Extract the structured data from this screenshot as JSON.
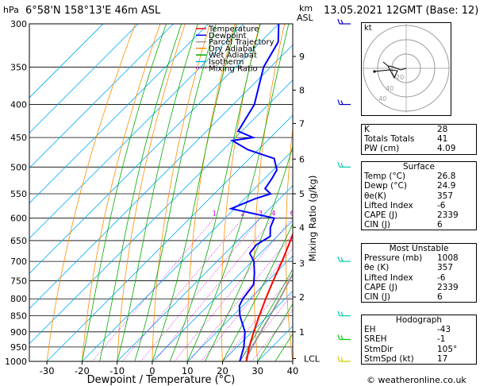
{
  "header": {
    "location": "6°58'N 158°13'E 46m ASL",
    "datetime": "13.05.2021 12GMT (Base: 12)",
    "hpa_label": "hPa",
    "km_label": "km",
    "asl_label": "ASL"
  },
  "footer": {
    "credit": "© weatheronline.co.uk"
  },
  "chart_data": {
    "type": "line",
    "title": "6°58'N 158°13'E 46m ASL",
    "xlabel": "Dewpoint / Temperature (°C)",
    "ylabel": "hPa",
    "right_ylabel": "Mixing Ratio (g/kg)",
    "xlim": [
      -35,
      40
    ],
    "ylim": [
      1000,
      300
    ],
    "x_ticks": [
      "-30",
      "-20",
      "-10",
      "0",
      "10",
      "20",
      "30",
      "40"
    ],
    "pressure_ticks": [
      "300",
      "350",
      "400",
      "450",
      "500",
      "550",
      "600",
      "650",
      "700",
      "750",
      "800",
      "850",
      "900",
      "950",
      "1000"
    ],
    "km_ticks": [
      {
        "label": "9",
        "p": 337
      },
      {
        "label": "8",
        "p": 380
      },
      {
        "label": "7",
        "p": 428
      },
      {
        "label": "6",
        "p": 486
      },
      {
        "label": "5",
        "p": 550
      },
      {
        "label": "4",
        "p": 620
      },
      {
        "label": "3",
        "p": 705
      },
      {
        "label": "2",
        "p": 795
      },
      {
        "label": "1",
        "p": 900
      },
      {
        "label": "LCL",
        "p": 990
      }
    ],
    "mixing_ratio_labels": [
      "1",
      "2",
      "3",
      "4",
      "6",
      "8",
      "10",
      "15",
      "20",
      "25"
    ],
    "legend": [
      "Temperature",
      "Dewpoint",
      "Parcel Trajectory",
      "Dry Adiabat",
      "Wet Adiabat",
      "Isotherm",
      "Mixing Ratio"
    ],
    "legend_colors": [
      "#ff0000",
      "#0000ff",
      "#999999",
      "#ff8c00",
      "#00aa00",
      "#00aaff",
      "#cc00cc"
    ],
    "temperature": [
      {
        "p": 1000,
        "t": 26.8
      },
      {
        "p": 950,
        "t": 23.5
      },
      {
        "p": 900,
        "t": 20.5
      },
      {
        "p": 850,
        "t": 17.5
      },
      {
        "p": 800,
        "t": 14.5
      },
      {
        "p": 750,
        "t": 11.5
      },
      {
        "p": 700,
        "t": 8.5
      },
      {
        "p": 650,
        "t": 5.0
      },
      {
        "p": 600,
        "t": 1.0
      },
      {
        "p": 550,
        "t": -3.5
      },
      {
        "p": 500,
        "t": -8.0
      },
      {
        "p": 470,
        "t": -10.0
      },
      {
        "p": 450,
        "t": -13.5
      },
      {
        "p": 400,
        "t": -19.5
      },
      {
        "p": 350,
        "t": -28.0
      },
      {
        "p": 300,
        "t": -37.0
      }
    ],
    "dewpoint": [
      {
        "p": 1000,
        "t": 24.9
      },
      {
        "p": 950,
        "t": 22.0
      },
      {
        "p": 900,
        "t": 18.0
      },
      {
        "p": 850,
        "t": 12.0
      },
      {
        "p": 820,
        "t": 9.0
      },
      {
        "p": 800,
        "t": 8.0
      },
      {
        "p": 760,
        "t": 7.0
      },
      {
        "p": 730,
        "t": 4.0
      },
      {
        "p": 700,
        "t": 0.5
      },
      {
        "p": 680,
        "t": -3.0
      },
      {
        "p": 660,
        "t": -3.5
      },
      {
        "p": 640,
        "t": -2.0
      },
      {
        "p": 620,
        "t": -4.5
      },
      {
        "p": 600,
        "t": -6.0
      },
      {
        "p": 580,
        "t": -21.0
      },
      {
        "p": 560,
        "t": -17.0
      },
      {
        "p": 550,
        "t": -14.0
      },
      {
        "p": 540,
        "t": -17.0
      },
      {
        "p": 520,
        "t": -18.0
      },
      {
        "p": 505,
        "t": -19.0
      },
      {
        "p": 485,
        "t": -23.0
      },
      {
        "p": 470,
        "t": -33.0
      },
      {
        "p": 455,
        "t": -40.0
      },
      {
        "p": 450,
        "t": -35.0
      },
      {
        "p": 440,
        "t": -41.0
      },
      {
        "p": 400,
        "t": -44.0
      },
      {
        "p": 350,
        "t": -52.0
      },
      {
        "p": 320,
        "t": -55.0
      },
      {
        "p": 300,
        "t": -60.0
      }
    ],
    "parcel": [
      {
        "p": 990,
        "t": 25.8
      },
      {
        "p": 900,
        "t": 22.5
      },
      {
        "p": 800,
        "t": 18.5
      },
      {
        "p": 700,
        "t": 13.5
      },
      {
        "p": 600,
        "t": 7.0
      },
      {
        "p": 500,
        "t": -1.0
      },
      {
        "p": 400,
        "t": -12.0
      },
      {
        "p": 300,
        "t": -28.0
      }
    ]
  },
  "hodograph": {
    "unit_label": "kt",
    "ring_labels": [
      "20",
      "40"
    ]
  },
  "params_top": [
    {
      "label": "K",
      "value": "28"
    },
    {
      "label": "Totals Totals",
      "value": "41"
    },
    {
      "label": "PW (cm)",
      "value": "4.09"
    }
  ],
  "surface": {
    "title": "Surface",
    "rows": [
      {
        "label": "Temp (°C)",
        "value": "26.8"
      },
      {
        "label": "Dewp (°C)",
        "value": "24.9"
      },
      {
        "label": "θe(K)",
        "value": "357"
      },
      {
        "label": "Lifted Index",
        "value": "-6"
      },
      {
        "label": "CAPE (J)",
        "value": "2339"
      },
      {
        "label": "CIN (J)",
        "value": "6"
      }
    ]
  },
  "most_unstable": {
    "title": "Most Unstable",
    "rows": [
      {
        "label": "Pressure (mb)",
        "value": "1008"
      },
      {
        "label": "θe (K)",
        "value": "357"
      },
      {
        "label": "Lifted Index",
        "value": "-6"
      },
      {
        "label": "CAPE (J)",
        "value": "2339"
      },
      {
        "label": "CIN (J)",
        "value": "6"
      }
    ]
  },
  "hodograph_params": {
    "title": "Hodograph",
    "rows": [
      {
        "label": "EH",
        "value": "-43"
      },
      {
        "label": "SREH",
        "value": "-1"
      },
      {
        "label": "StmDir",
        "value": "105°"
      },
      {
        "label": "StmSpd (kt)",
        "value": "17"
      }
    ]
  }
}
